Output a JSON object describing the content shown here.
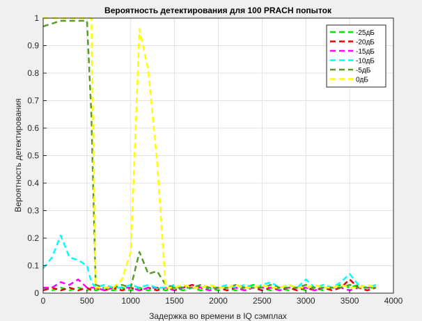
{
  "chart_data": {
    "type": "line",
    "title": "Вероятность детектирования для 100 PRACH попыток",
    "xlabel": "Задержка во времени в IQ сэмплах",
    "ylabel": "Вероятность детектирования",
    "xlim": [
      0,
      4000
    ],
    "ylim": [
      0,
      1
    ],
    "xticks": [
      0,
      500,
      1000,
      1500,
      2000,
      2500,
      3000,
      3500,
      4000
    ],
    "yticks": [
      0,
      0.1,
      0.2,
      0.3,
      0.4,
      0.5,
      0.6,
      0.7,
      0.8,
      0.9,
      1
    ],
    "xtick_labels": [
      "0",
      "500",
      "1000",
      "1500",
      "2000",
      "2500",
      "3000",
      "3500",
      "4000"
    ],
    "ytick_labels": [
      "0",
      "0.1",
      "0.2",
      "0.3",
      "0.4",
      "0.5",
      "0.6",
      "0.7",
      "0.8",
      "0.9",
      "1"
    ],
    "grid": true,
    "legend_position": "top-right",
    "line_style": "dashed",
    "x": [
      0,
      100,
      200,
      300,
      400,
      500,
      550,
      600,
      700,
      800,
      900,
      1000,
      1100,
      1200,
      1300,
      1400,
      1500,
      1600,
      1700,
      1800,
      1900,
      2000,
      2100,
      2200,
      2300,
      2400,
      2500,
      2600,
      2700,
      2800,
      2900,
      3000,
      3100,
      3200,
      3300,
      3400,
      3500,
      3600,
      3700,
      3800
    ],
    "series": [
      {
        "name": "-25дБ",
        "color": "#00e600",
        "values": [
          0.02,
          0.01,
          0.02,
          0.01,
          0.02,
          0.01,
          0.02,
          0.01,
          0.02,
          0.01,
          0.02,
          0.01,
          0.02,
          0.01,
          0.02,
          0.01,
          0.02,
          0.01,
          0.02,
          0.01,
          0.02,
          0.01,
          0.02,
          0.01,
          0.02,
          0.03,
          0.02,
          0.01,
          0.02,
          0.01,
          0.02,
          0.01,
          0.02,
          0.01,
          0.02,
          0.03,
          0.02,
          0.03,
          0.02,
          0.02
        ]
      },
      {
        "name": "-20дБ",
        "color": "#e60000",
        "values": [
          0.01,
          0.02,
          0.01,
          0.02,
          0.01,
          0.02,
          0.01,
          0.02,
          0.01,
          0.02,
          0.01,
          0.02,
          0.01,
          0.02,
          0.01,
          0.02,
          0.01,
          0.02,
          0.03,
          0.02,
          0.01,
          0.02,
          0.01,
          0.02,
          0.01,
          0.02,
          0.01,
          0.02,
          0.01,
          0.02,
          0.01,
          0.02,
          0.01,
          0.02,
          0.01,
          0.02,
          0.05,
          0.02,
          0.01,
          0.02
        ]
      },
      {
        "name": "-15дБ",
        "color": "#ff00ff",
        "values": [
          0.02,
          0.02,
          0.04,
          0.03,
          0.05,
          0.02,
          0.02,
          0.02,
          0.01,
          0.02,
          0.02,
          0.02,
          0.01,
          0.02,
          0.02,
          0.02,
          0.01,
          0.02,
          0.02,
          0.02,
          0.01,
          0.02,
          0.02,
          0.02,
          0.01,
          0.02,
          0.02,
          0.02,
          0.01,
          0.02,
          0.02,
          0.02,
          0.01,
          0.02,
          0.02,
          0.02,
          0.01,
          0.02,
          0.02,
          0.02
        ]
      },
      {
        "name": "-10дБ",
        "color": "#00ffff",
        "values": [
          0.09,
          0.13,
          0.21,
          0.13,
          0.12,
          0.1,
          0.04,
          0.02,
          0.03,
          0.02,
          0.02,
          0.03,
          0.02,
          0.03,
          0.02,
          0.02,
          0.03,
          0.02,
          0.02,
          0.03,
          0.02,
          0.02,
          0.03,
          0.02,
          0.03,
          0.02,
          0.03,
          0.04,
          0.02,
          0.03,
          0.02,
          0.05,
          0.02,
          0.03,
          0.02,
          0.04,
          0.07,
          0.03,
          0.02,
          0.03
        ]
      },
      {
        "name": "-5дБ",
        "color": "#5a9a2a",
        "values": [
          0.97,
          0.98,
          0.99,
          0.99,
          0.99,
          0.99,
          0.65,
          0.03,
          0.02,
          0.02,
          0.03,
          0.02,
          0.15,
          0.07,
          0.08,
          0.03,
          0.02,
          0.02,
          0.02,
          0.03,
          0.02,
          0.02,
          0.02,
          0.03,
          0.02,
          0.02,
          0.02,
          0.03,
          0.02,
          0.02,
          0.02,
          0.03,
          0.02,
          0.02,
          0.02,
          0.02,
          0.03,
          0.02,
          0.02,
          0.02
        ]
      },
      {
        "name": "0дБ",
        "color": "#ffff00",
        "values": [
          1.0,
          1.0,
          1.0,
          1.0,
          1.0,
          1.0,
          1.0,
          0.02,
          0.02,
          0.02,
          0.05,
          0.15,
          0.96,
          0.81,
          0.48,
          0.02,
          0.02,
          0.03,
          0.02,
          0.02,
          0.03,
          0.02,
          0.02,
          0.03,
          0.02,
          0.02,
          0.03,
          0.02,
          0.02,
          0.03,
          0.02,
          0.02,
          0.03,
          0.02,
          0.02,
          0.03,
          0.02,
          0.02,
          0.03,
          0.02
        ]
      }
    ]
  }
}
